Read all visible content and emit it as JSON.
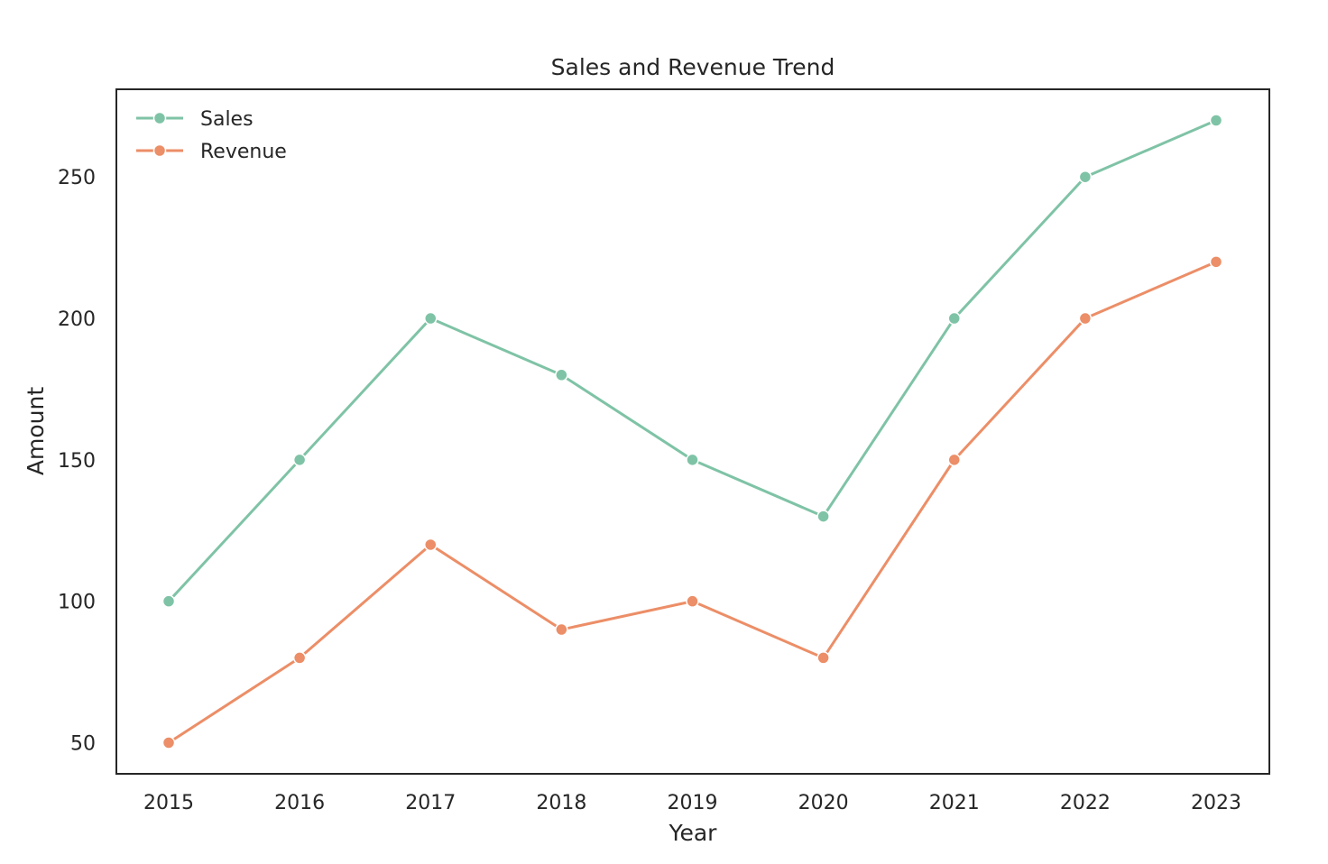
{
  "chart_data": {
    "type": "line",
    "title": "Sales and Revenue Trend",
    "xlabel": "Year",
    "ylabel": "Amount",
    "categories": [
      "2015",
      "2016",
      "2017",
      "2018",
      "2019",
      "2020",
      "2021",
      "2022",
      "2023"
    ],
    "series": [
      {
        "name": "Sales",
        "color": "#7fc3a6",
        "values": [
          100,
          150,
          200,
          180,
          150,
          130,
          200,
          250,
          270
        ]
      },
      {
        "name": "Revenue",
        "color": "#ec8e67",
        "values": [
          50,
          80,
          120,
          90,
          100,
          80,
          150,
          200,
          220
        ]
      }
    ],
    "yticks": [
      50,
      100,
      150,
      200,
      250
    ],
    "ylim": [
      39,
      281
    ],
    "grid": false,
    "legend": "top-left",
    "marker": "circle"
  }
}
